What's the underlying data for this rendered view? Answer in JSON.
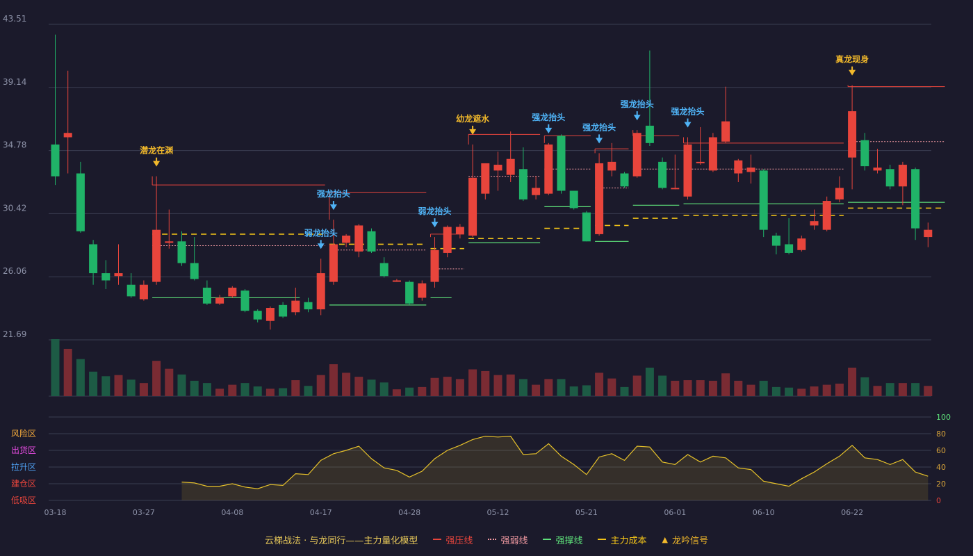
{
  "colors": {
    "background": "#1b1a2b",
    "up": "#e8453c",
    "down": "#20b368",
    "volume_up": "#7a2b33",
    "volume_down": "#1d5b45",
    "pressure": "#e8453c",
    "weak": "#f29aa2",
    "support": "#5ee07a",
    "cost": "#f2c318",
    "signal_gold": "#f2b92b",
    "signal_blue": "#4fb3f6",
    "grid": "#3a3d52",
    "axis_text": "#8d92a8",
    "oscillator": "#e7c22a"
  },
  "legend": {
    "title": "云梯战法 · 与龙同行——主力量化模型",
    "strong_pressure": "强压线",
    "weak_line": "强弱线",
    "support": "强撑线",
    "cost": "主力成本",
    "signal": "龙吟信号"
  },
  "chart_data": {
    "type": "candlestick",
    "ylim": [
      21.69,
      43.51
    ],
    "yticks": [
      "43.51",
      "39.14",
      "34.78",
      "30.42",
      "26.06",
      "21.69"
    ],
    "xticks": [
      {
        "index": 0,
        "label": "03-18"
      },
      {
        "index": 7,
        "label": "03-27"
      },
      {
        "index": 14,
        "label": "04-08"
      },
      {
        "index": 21,
        "label": "04-17"
      },
      {
        "index": 28,
        "label": "04-28"
      },
      {
        "index": 35,
        "label": "05-12"
      },
      {
        "index": 42,
        "label": "05-21"
      },
      {
        "index": 49,
        "label": "06-01"
      },
      {
        "index": 56,
        "label": "06-10"
      },
      {
        "index": 63,
        "label": "06-22"
      }
    ],
    "candles": [
      [
        35.2,
        33.0,
        32.4,
        42.8
      ],
      [
        35.7,
        36.0,
        33.2,
        40.3
      ],
      [
        33.2,
        29.2,
        29.1,
        34.0
      ],
      [
        28.3,
        26.3,
        25.5,
        28.6
      ],
      [
        26.3,
        25.8,
        25.2,
        27.2
      ],
      [
        26.1,
        26.3,
        25.5,
        28.3
      ],
      [
        25.5,
        24.7,
        24.6,
        26.3
      ],
      [
        24.5,
        25.5,
        24.4,
        25.8
      ],
      [
        25.7,
        29.3,
        25.5,
        33.0
      ],
      [
        28.4,
        28.5,
        28.0,
        30.7
      ],
      [
        28.5,
        27.0,
        26.8,
        29.2
      ],
      [
        27.0,
        25.9,
        25.8,
        28.8
      ],
      [
        25.3,
        24.2,
        24.1,
        25.8
      ],
      [
        24.2,
        24.6,
        24.1,
        24.8
      ],
      [
        24.7,
        25.3,
        24.6,
        25.4
      ],
      [
        25.1,
        23.7,
        23.6,
        25.2
      ],
      [
        23.7,
        23.1,
        22.9,
        23.8
      ],
      [
        23.0,
        23.9,
        22.4,
        24.0
      ],
      [
        24.1,
        23.3,
        23.2,
        24.3
      ],
      [
        23.6,
        24.4,
        23.4,
        25.3
      ],
      [
        24.3,
        23.8,
        23.6,
        24.6
      ],
      [
        23.8,
        26.3,
        23.4,
        27.3
      ],
      [
        25.7,
        28.3,
        25.5,
        30.0
      ],
      [
        28.4,
        28.9,
        28.1,
        29.0
      ],
      [
        27.8,
        29.6,
        27.4,
        29.7
      ],
      [
        29.2,
        27.8,
        27.7,
        29.4
      ],
      [
        27.0,
        26.1,
        26.0,
        27.4
      ],
      [
        25.8,
        25.8,
        25.7,
        25.9
      ],
      [
        25.7,
        24.2,
        24.1,
        25.8
      ],
      [
        24.6,
        25.6,
        24.4,
        25.8
      ],
      [
        25.7,
        27.9,
        25.3,
        28.8
      ],
      [
        27.7,
        29.5,
        27.4,
        29.6
      ],
      [
        29.0,
        29.5,
        28.7,
        29.7
      ],
      [
        28.9,
        32.9,
        28.8,
        35.2
      ],
      [
        31.8,
        33.9,
        31.4,
        33.9
      ],
      [
        33.4,
        33.8,
        32.0,
        34.7
      ],
      [
        33.1,
        34.2,
        32.6,
        36.1
      ],
      [
        33.5,
        31.4,
        31.3,
        35.0
      ],
      [
        31.7,
        32.2,
        31.4,
        33.0
      ],
      [
        31.8,
        35.2,
        31.7,
        35.3
      ],
      [
        35.8,
        32.0,
        31.8,
        35.9
      ],
      [
        32.0,
        30.8,
        30.7,
        32.0
      ],
      [
        30.5,
        28.5,
        28.5,
        30.6
      ],
      [
        29.0,
        33.9,
        28.9,
        34.6
      ],
      [
        33.4,
        34.0,
        33.0,
        35.3
      ],
      [
        33.2,
        32.3,
        32.2,
        33.3
      ],
      [
        33.0,
        36.0,
        32.9,
        36.2
      ],
      [
        36.5,
        35.3,
        35.1,
        41.7
      ],
      [
        34.0,
        32.2,
        32.1,
        34.3
      ],
      [
        32.2,
        32.2,
        32.1,
        34.5
      ],
      [
        31.6,
        35.2,
        31.4,
        35.7
      ],
      [
        33.9,
        34.0,
        33.8,
        36.4
      ],
      [
        33.4,
        35.7,
        33.3,
        36.0
      ],
      [
        35.4,
        36.8,
        35.3,
        39.2
      ],
      [
        33.2,
        34.1,
        32.6,
        34.2
      ],
      [
        33.3,
        33.6,
        32.5,
        34.5
      ],
      [
        33.4,
        29.3,
        28.8,
        33.5
      ],
      [
        28.9,
        28.2,
        27.6,
        29.1
      ],
      [
        28.3,
        27.7,
        27.6,
        30.1
      ],
      [
        27.9,
        28.7,
        27.8,
        28.9
      ],
      [
        29.6,
        29.9,
        29.3,
        30.7
      ],
      [
        29.3,
        31.3,
        29.2,
        31.6
      ],
      [
        31.4,
        32.2,
        31.2,
        33.0
      ],
      [
        34.3,
        37.5,
        32.1,
        39.3
      ],
      [
        35.5,
        33.7,
        33.4,
        36.0
      ],
      [
        33.4,
        33.6,
        33.2,
        34.9
      ],
      [
        33.5,
        32.3,
        32.1,
        33.8
      ],
      [
        32.3,
        33.8,
        31.0,
        34.0
      ],
      [
        33.5,
        29.4,
        28.6,
        33.6
      ],
      [
        28.8,
        29.3,
        28.1,
        29.8
      ]
    ],
    "volume": [
      100,
      83,
      65,
      43,
      35,
      37,
      29,
      23,
      62,
      48,
      38,
      27,
      23,
      13,
      20,
      23,
      17,
      13,
      14,
      28,
      18,
      37,
      56,
      41,
      34,
      29,
      24,
      12,
      15,
      16,
      32,
      34,
      30,
      47,
      44,
      37,
      38,
      30,
      20,
      30,
      30,
      17,
      19,
      41,
      31,
      16,
      36,
      50,
      36,
      27,
      28,
      28,
      27,
      40,
      27,
      20,
      27,
      16,
      15,
      13,
      17,
      20,
      22,
      50,
      33,
      18,
      23,
      23,
      23,
      18
    ],
    "volume_max": 100,
    "osc_ticks": [
      "100",
      "80",
      "60",
      "40",
      "20",
      "0"
    ],
    "osc_zones": [
      "风险区",
      "出货区",
      "拉升区",
      "建仓区",
      "低吸区"
    ],
    "osc_zone_colors": [
      "#f2a93b",
      "#e84ce3",
      "#4fa3f6",
      "#e8453c",
      "#e8453c"
    ],
    "osc_start_index": 10,
    "oscillator": [
      22,
      21,
      17,
      17,
      20,
      16,
      14,
      19,
      18,
      32,
      31,
      48,
      56,
      60,
      65,
      50,
      39,
      36,
      28,
      35,
      50,
      60,
      66,
      73,
      77,
      76,
      77,
      55,
      56,
      68,
      53,
      43,
      31,
      52,
      56,
      48,
      65,
      64,
      46,
      43,
      55,
      46,
      53,
      51,
      39,
      37,
      23,
      20,
      17,
      26,
      34,
      44,
      53,
      66,
      51,
      49,
      43,
      49,
      34,
      29
    ],
    "signals": [
      {
        "index": 8,
        "label": "潜龙在渊",
        "color": "gold",
        "price": 33.0
      },
      {
        "index": 21,
        "label": "弱龙抬头",
        "color": "blue",
        "price": 27.3
      },
      {
        "index": 22,
        "label": "强龙抬头",
        "color": "blue",
        "price": 30.0
      },
      {
        "index": 30,
        "label": "弱龙抬头",
        "color": "blue",
        "price": 28.8
      },
      {
        "index": 33,
        "label": "幼龙遮水",
        "color": "gold",
        "price": 35.2
      },
      {
        "index": 39,
        "label": "强龙抬头",
        "color": "blue",
        "price": 35.3
      },
      {
        "index": 43,
        "label": "强龙抬头",
        "color": "blue",
        "price": 34.6
      },
      {
        "index": 46,
        "label": "强龙抬头",
        "color": "blue",
        "price": 36.2
      },
      {
        "index": 50,
        "label": "强龙抬头",
        "color": "blue",
        "price": 35.7
      },
      {
        "index": 63,
        "label": "真龙现身",
        "color": "gold",
        "price": 39.3
      }
    ],
    "segments": [
      {
        "kind": "pressure",
        "from": 8,
        "to": 21,
        "value": 32.4
      },
      {
        "kind": "weak",
        "from": 8,
        "to": 21,
        "value": 28.2
      },
      {
        "kind": "cost",
        "from": 8,
        "to": 21,
        "value": 29.0
      },
      {
        "kind": "support",
        "from": 8,
        "to": 19,
        "value": 24.6
      },
      {
        "kind": "pressure",
        "from": 22,
        "to": 29,
        "value": 31.9
      },
      {
        "kind": "weak",
        "from": 22,
        "to": 29,
        "value": 27.9
      },
      {
        "kind": "cost",
        "from": 22,
        "to": 29,
        "value": 28.3
      },
      {
        "kind": "support",
        "from": 22,
        "to": 29,
        "value": 24.1
      },
      {
        "kind": "pressure",
        "from": 30,
        "to": 32,
        "value": 29.0
      },
      {
        "kind": "weak",
        "from": 30,
        "to": 32,
        "value": 26.6
      },
      {
        "kind": "cost",
        "from": 30,
        "to": 32,
        "value": 28.0
      },
      {
        "kind": "support",
        "from": 30,
        "to": 31,
        "value": 24.6
      },
      {
        "kind": "pressure",
        "from": 33,
        "to": 38,
        "value": 35.9
      },
      {
        "kind": "weak",
        "from": 33,
        "to": 38,
        "value": 33.0
      },
      {
        "kind": "cost",
        "from": 33,
        "to": 38,
        "value": 28.7
      },
      {
        "kind": "support",
        "from": 33,
        "to": 38,
        "value": 28.4
      },
      {
        "kind": "pressure",
        "from": 39,
        "to": 42,
        "value": 35.8
      },
      {
        "kind": "weak",
        "from": 39,
        "to": 42,
        "value": 33.5
      },
      {
        "kind": "cost",
        "from": 39,
        "to": 42,
        "value": 29.4
      },
      {
        "kind": "support",
        "from": 39,
        "to": 42,
        "value": 30.9
      },
      {
        "kind": "pressure",
        "from": 43,
        "to": 45,
        "value": 34.9
      },
      {
        "kind": "weak",
        "from": 43,
        "to": 45,
        "value": 32.2
      },
      {
        "kind": "cost",
        "from": 43,
        "to": 45,
        "value": 29.6
      },
      {
        "kind": "support",
        "from": 43,
        "to": 45,
        "value": 28.5
      },
      {
        "kind": "pressure",
        "from": 46,
        "to": 49,
        "value": 35.8
      },
      {
        "kind": "weak",
        "from": 46,
        "to": 49,
        "value": 33.5
      },
      {
        "kind": "cost",
        "from": 46,
        "to": 49,
        "value": 30.1
      },
      {
        "kind": "support",
        "from": 46,
        "to": 49,
        "value": 31.0
      },
      {
        "kind": "pressure",
        "from": 50,
        "to": 62,
        "value": 35.3
      },
      {
        "kind": "weak",
        "from": 50,
        "to": 62,
        "value": 33.5
      },
      {
        "kind": "cost",
        "from": 50,
        "to": 62,
        "value": 30.3
      },
      {
        "kind": "support",
        "from": 50,
        "to": 62,
        "value": 31.1
      },
      {
        "kind": "pressure",
        "from": 63,
        "to": 70,
        "value": 39.2
      },
      {
        "kind": "weak",
        "from": 63,
        "to": 70,
        "value": 35.4
      },
      {
        "kind": "cost",
        "from": 63,
        "to": 70,
        "value": 30.8
      },
      {
        "kind": "support",
        "from": 63,
        "to": 70,
        "value": 31.2
      }
    ]
  }
}
